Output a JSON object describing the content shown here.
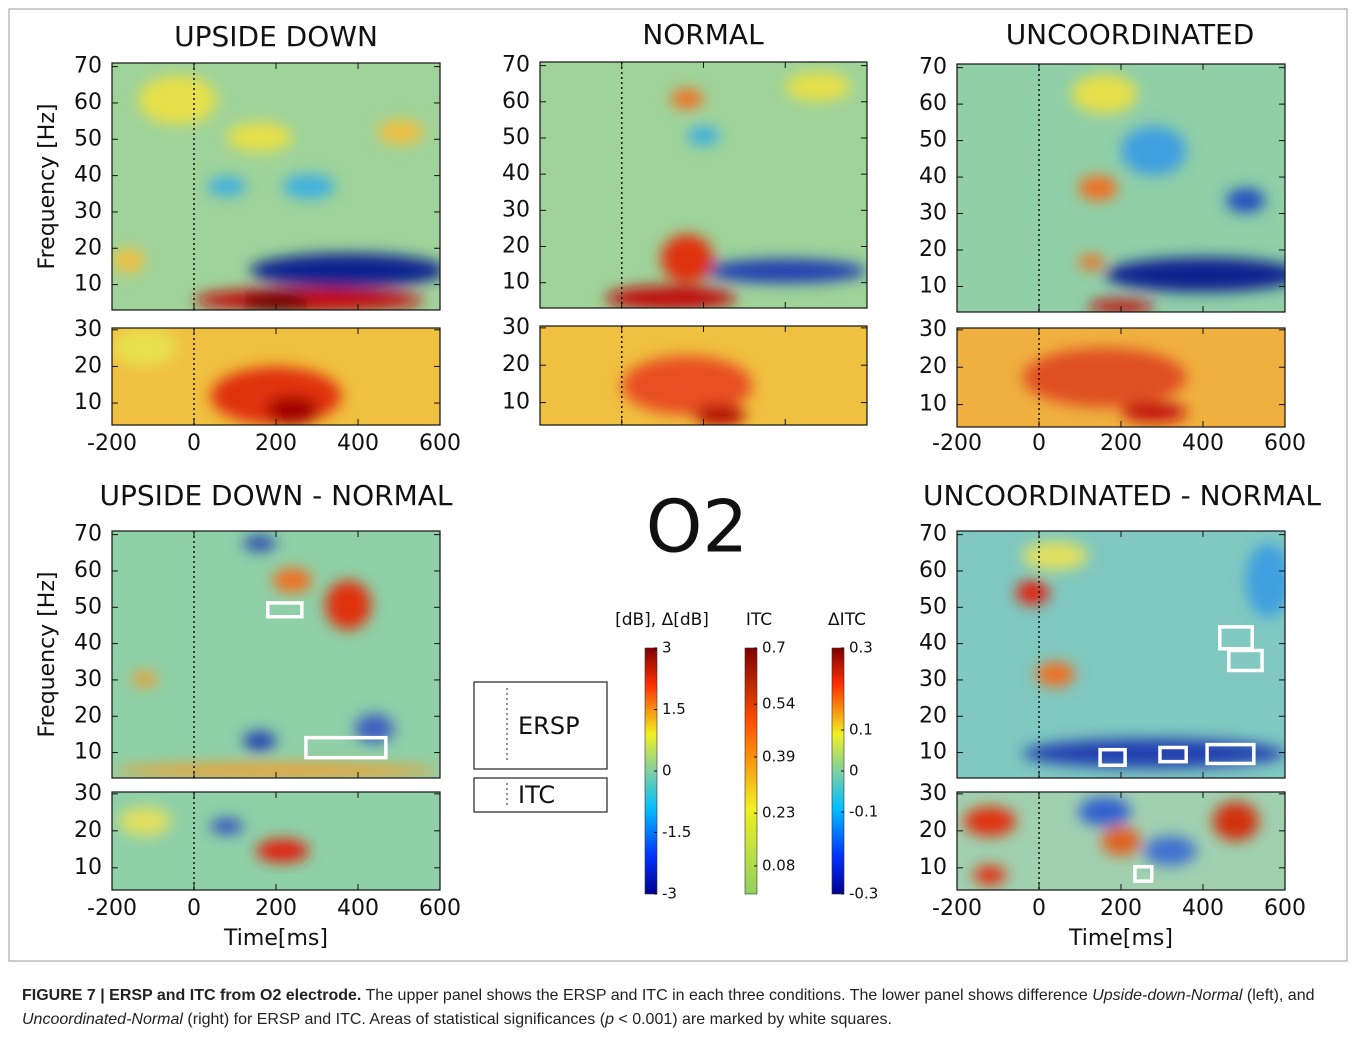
{
  "figure": {
    "electrode": "O2",
    "onset": 0,
    "time_axis": {
      "label": "Time[ms]",
      "xlim": [
        -200,
        600
      ],
      "xticks": [
        -200,
        0,
        200,
        400,
        600
      ]
    },
    "ersp_axis": {
      "label": "Frequency [Hz]",
      "ylim": [
        3,
        71
      ],
      "yticks": [
        10,
        20,
        30,
        40,
        50,
        60,
        70
      ]
    },
    "itc_axis": {
      "ylim": [
        4,
        30.5
      ],
      "yticks": [
        10,
        20,
        30
      ]
    },
    "panels": [
      {
        "title": "UPSIDE DOWN",
        "significant": {
          "ersp": [],
          "itc": []
        }
      },
      {
        "title": "NORMAL",
        "significant": {
          "ersp": [],
          "itc": []
        }
      },
      {
        "title": "UNCOORDINATED",
        "significant": {
          "ersp": [],
          "itc": []
        }
      },
      {
        "title": "UPSIDE DOWN - NORMAL",
        "significant": {
          "ersp": [
            {
              "t": [
                180,
                263
              ],
              "f": [
                47.4,
                51.2
              ]
            },
            {
              "t": [
                273,
                468
              ],
              "f": [
                8.6,
                14.1
              ]
            }
          ],
          "itc": []
        }
      },
      {
        "title": "UNCOORDINATED - NORMAL",
        "significant": {
          "ersp": [
            {
              "t": [
                441,
                520
              ],
              "f": [
                38.6,
                44.6
              ]
            },
            {
              "t": [
                463,
                544
              ],
              "f": [
                32.6,
                38.1
              ]
            },
            {
              "t": [
                149,
                210
              ],
              "f": [
                6.5,
                10.8
              ]
            },
            {
              "t": [
                295,
                359
              ],
              "f": [
                7.5,
                11.4
              ]
            },
            {
              "t": [
                410,
                524
              ],
              "f": [
                7,
                12.2
              ]
            }
          ],
          "itc": [
            {
              "t": [
                234,
                275
              ],
              "f": [
                6.4,
                10.3
              ]
            }
          ]
        }
      }
    ],
    "legend": {
      "ersp": "ERSP",
      "itc": "ITC"
    },
    "colorbars": [
      {
        "label": "[dB], Δ[dB]",
        "lim": [
          -3,
          3
        ],
        "ticks": [
          3,
          1.5,
          0,
          -1.5,
          -3
        ],
        "colormap": "jet"
      },
      {
        "label": "ITC",
        "lim": [
          0,
          0.7
        ],
        "ticks": [
          0.7,
          0.54,
          0.39,
          0.23,
          0.08
        ],
        "colormap": "warm"
      },
      {
        "label": "ΔITC",
        "lim": [
          -0.3,
          0.3
        ],
        "ticks": [
          0.3,
          0.1,
          0,
          -0.1,
          -0.3
        ],
        "colormap": "jet"
      }
    ]
  },
  "caption": {
    "label": "FIGURE 7 | ERSP and ITC from O2 electrode.",
    "parts": [
      " The upper panel shows the ERSP and ITC in each three conditions. The lower panel shows difference ",
      "Upside-down-Normal",
      " (left), and ",
      "Uncoordinated-Normal",
      " (right) for ERSP and ITC. Areas of statistical significances (",
      "p",
      " < 0.001) are marked by white squares."
    ]
  }
}
